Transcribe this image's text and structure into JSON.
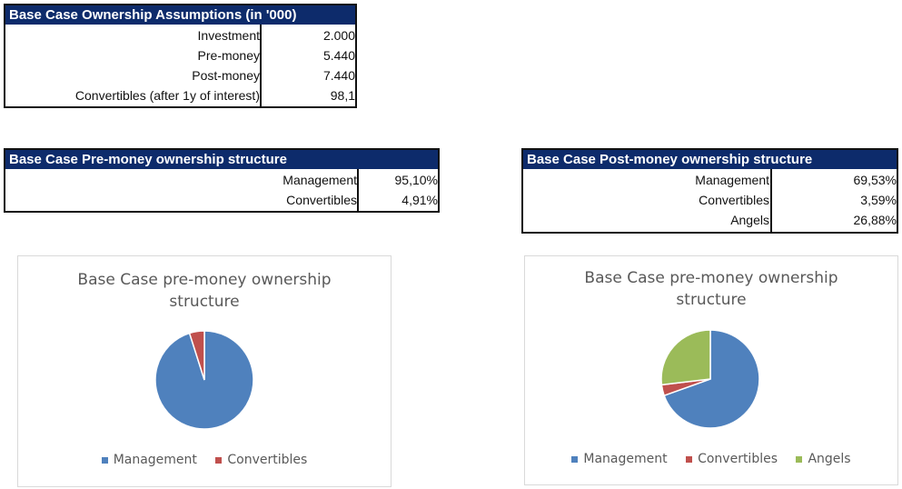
{
  "assumptions": {
    "title": "Base Case Ownership Assumptions (in '000)",
    "rows": [
      {
        "label": "Investment",
        "value": "2.000"
      },
      {
        "label": "Pre-money",
        "value": "5.440"
      },
      {
        "label": "Post-money",
        "value": "7.440"
      },
      {
        "label": "Convertibles (after 1y of interest)",
        "value": "98,1"
      }
    ]
  },
  "pre_money": {
    "title": "Base Case Pre-money ownership structure",
    "rows": [
      {
        "label": "Management",
        "value": "95,10%"
      },
      {
        "label": "Convertibles",
        "value": "4,91%"
      }
    ]
  },
  "post_money": {
    "title": "Base Case Post-money ownership structure",
    "rows": [
      {
        "label": "Management",
        "value": "69,53%"
      },
      {
        "label": "Convertibles",
        "value": "3,59%"
      },
      {
        "label": "Angels",
        "value": "26,88%"
      }
    ]
  },
  "chart_data": [
    {
      "type": "pie",
      "title_lines": [
        "Base Case pre-money ownership",
        "structure"
      ],
      "legend": "bottom",
      "series": [
        {
          "name": "Management",
          "value": 95.1,
          "color": "#4f81bd"
        },
        {
          "name": "Convertibles",
          "value": 4.91,
          "color": "#c0504d"
        }
      ]
    },
    {
      "type": "pie",
      "title_lines": [
        "Base Case pre-money ownership",
        "structure"
      ],
      "legend": "bottom",
      "series": [
        {
          "name": "Management",
          "value": 69.53,
          "color": "#4f81bd"
        },
        {
          "name": "Convertibles",
          "value": 3.59,
          "color": "#c0504d"
        },
        {
          "name": "Angels",
          "value": 26.88,
          "color": "#9bbb59"
        }
      ]
    }
  ]
}
